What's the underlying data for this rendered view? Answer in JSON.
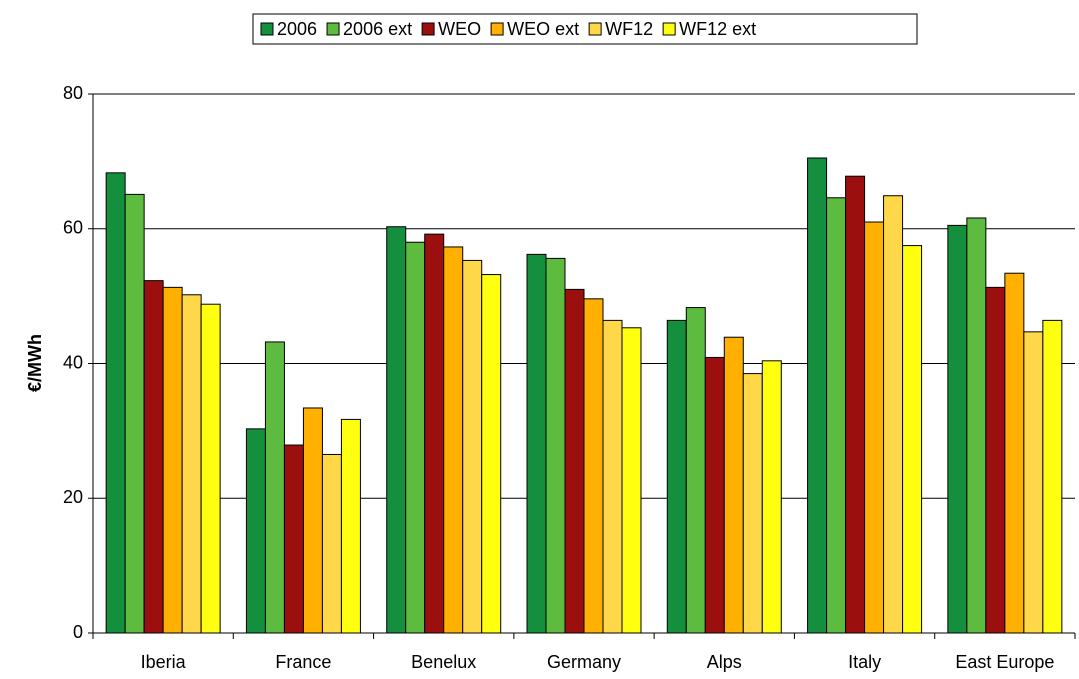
{
  "chart_data": {
    "type": "bar",
    "y_label": "€/MWh",
    "categories": [
      "Iberia",
      "France",
      "Benelux",
      "Germany",
      "Alps",
      "Italy",
      "East Europe"
    ],
    "series": [
      {
        "name": "2006",
        "color": "#138f3e",
        "values": [
          68.3,
          30.3,
          60.3,
          56.2,
          46.4,
          70.5,
          60.5
        ]
      },
      {
        "name": "2006 ext",
        "color": "#5dbb3f",
        "values": [
          65.1,
          43.2,
          58.0,
          55.6,
          48.3,
          64.6,
          61.6
        ]
      },
      {
        "name": "WEO",
        "color": "#9b0f0f",
        "values": [
          52.3,
          27.9,
          59.2,
          51.0,
          40.9,
          67.8,
          51.3
        ]
      },
      {
        "name": "WEO ext",
        "color": "#ffb000",
        "values": [
          51.3,
          33.4,
          57.3,
          49.6,
          43.9,
          61.0,
          53.4
        ]
      },
      {
        "name": "WF12",
        "color": "#ffd84a",
        "values": [
          50.2,
          26.5,
          55.3,
          46.4,
          38.5,
          64.9,
          44.7
        ]
      },
      {
        "name": "WF12 ext",
        "color": "#ffff10",
        "values": [
          48.8,
          31.7,
          53.2,
          45.3,
          40.4,
          57.5,
          46.4
        ]
      }
    ],
    "ylim": [
      0,
      80
    ],
    "yticks": [
      0,
      20,
      40,
      60,
      80
    ],
    "grid": true,
    "legend": "top"
  }
}
